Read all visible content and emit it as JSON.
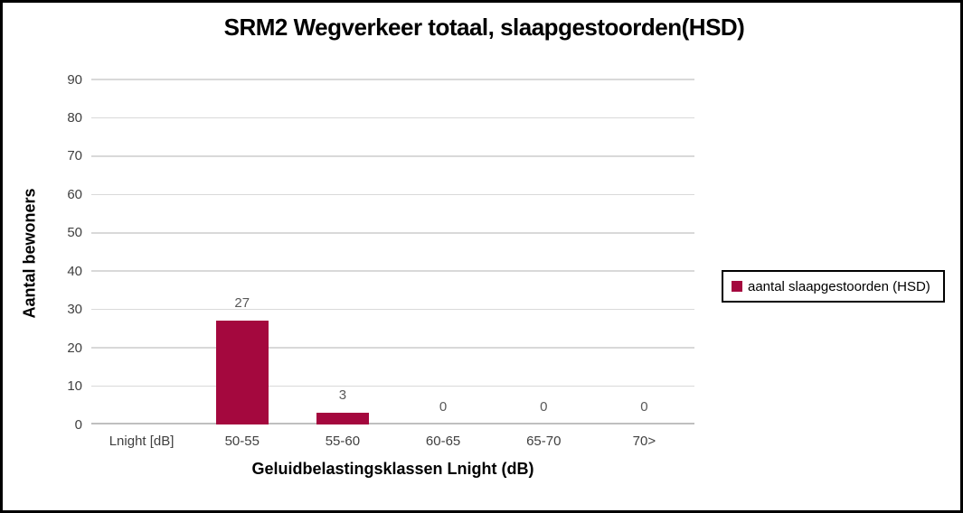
{
  "title": "SRM2 Wegverkeer totaal, slaapgestoorden(HSD)",
  "colors": {
    "bar": "#a4083e",
    "gridline": "#d9d9d9",
    "axis_line": "#bfbfbf",
    "tick_text": "#404040",
    "data_label": "#595959",
    "frame_border": "#000000"
  },
  "legend": {
    "label": "aantal slaapgestoorden (HSD)",
    "swatch_color": "#a4083e",
    "position": "right"
  },
  "chart_data": {
    "type": "bar",
    "title": "SRM2 Wegverkeer totaal, slaapgestoorden(HSD)",
    "categories": [
      "Lnight [dB]",
      "50-55",
      "55-60",
      "60-65",
      "65-70",
      "70>"
    ],
    "series": [
      {
        "name": "aantal slaapgestoorden (HSD)",
        "values": [
          null,
          27,
          3,
          0,
          0,
          0
        ],
        "color": "#a4083e"
      }
    ],
    "data_labels": [
      "",
      "27",
      "3",
      "0",
      "0",
      "0"
    ],
    "xlabel": "Geluidbelastingsklassen Lnight (dB)",
    "ylabel": "Aantal bewoners",
    "ylim": [
      0,
      90
    ],
    "ytick_interval": 10,
    "yticks": [
      0,
      10,
      20,
      30,
      40,
      50,
      60,
      70,
      80,
      90
    ],
    "grid": true,
    "legend_position": "right"
  }
}
